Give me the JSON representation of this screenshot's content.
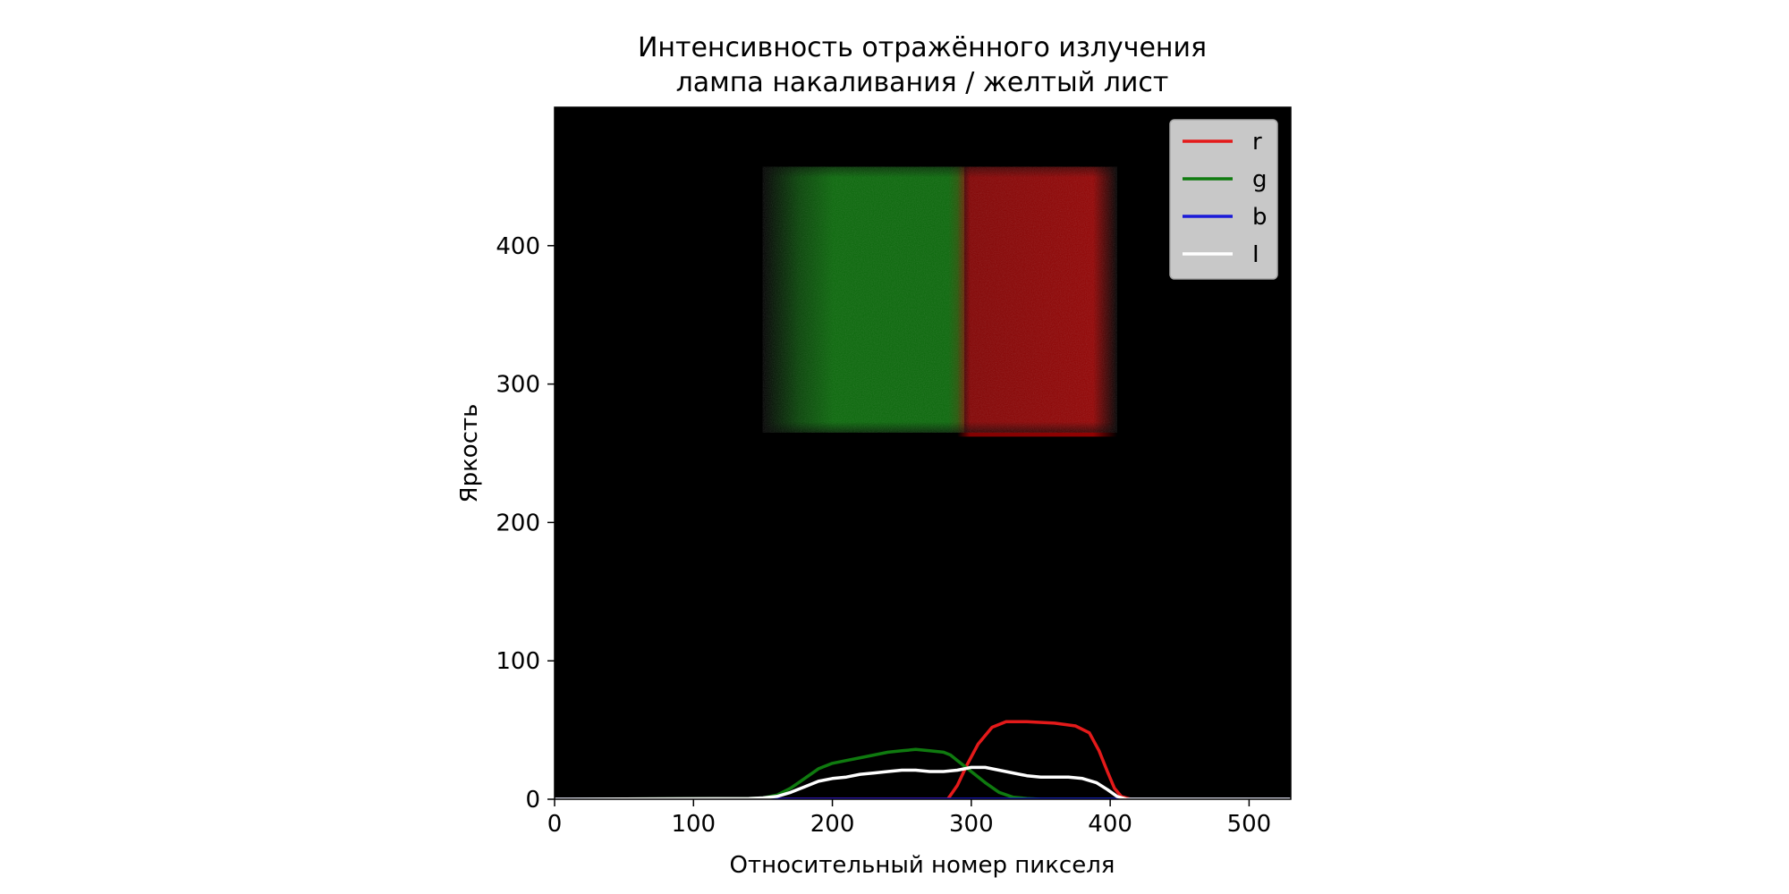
{
  "chart_data": {
    "type": "line",
    "title": "Интенсивность отражённого излучения",
    "subtitle": "лампа накаливания / желтый лист",
    "xlabel": "Относительный номер пикселя",
    "ylabel": "Яркость",
    "xlim": [
      0,
      530
    ],
    "ylim": [
      0,
      500
    ],
    "x_ticks": [
      0,
      100,
      200,
      300,
      400,
      500
    ],
    "y_ticks": [
      0,
      100,
      200,
      300,
      400
    ],
    "grid": false,
    "legend_position": "top-right",
    "background_image": {
      "description": "spectrum photo",
      "green_band": {
        "x": [
          150,
          295
        ],
        "y": [
          265,
          457
        ],
        "color": "#0a7a0a"
      },
      "red_band": {
        "x": [
          290,
          405
        ],
        "y": [
          262,
          457
        ],
        "color": "#9a0202"
      }
    },
    "series": [
      {
        "name": "r",
        "color": "#e41a1a",
        "points": [
          [
            0,
            0
          ],
          [
            270,
            0
          ],
          [
            283,
            0
          ],
          [
            290,
            10
          ],
          [
            297,
            25
          ],
          [
            305,
            40
          ],
          [
            315,
            52
          ],
          [
            325,
            56
          ],
          [
            340,
            56
          ],
          [
            360,
            55
          ],
          [
            375,
            53
          ],
          [
            385,
            48
          ],
          [
            392,
            35
          ],
          [
            398,
            20
          ],
          [
            403,
            8
          ],
          [
            408,
            2
          ],
          [
            415,
            0
          ],
          [
            530,
            0
          ]
        ]
      },
      {
        "name": "g",
        "color": "#0f7a0f",
        "points": [
          [
            0,
            0
          ],
          [
            140,
            0.5
          ],
          [
            150,
            1
          ],
          [
            160,
            3
          ],
          [
            170,
            8
          ],
          [
            180,
            15
          ],
          [
            190,
            22
          ],
          [
            200,
            26
          ],
          [
            210,
            28
          ],
          [
            220,
            30
          ],
          [
            230,
            32
          ],
          [
            240,
            34
          ],
          [
            250,
            35
          ],
          [
            260,
            36
          ],
          [
            270,
            35
          ],
          [
            280,
            34
          ],
          [
            285,
            32
          ],
          [
            290,
            28
          ],
          [
            300,
            20
          ],
          [
            310,
            12
          ],
          [
            320,
            5
          ],
          [
            330,
            1.5
          ],
          [
            340,
            0.5
          ],
          [
            350,
            0
          ],
          [
            530,
            0
          ]
        ]
      },
      {
        "name": "b",
        "color": "#1a1ad8",
        "points": [
          [
            0,
            0
          ],
          [
            530,
            0
          ]
        ]
      },
      {
        "name": "I",
        "color": "#ffffff",
        "points": [
          [
            0,
            0
          ],
          [
            140,
            0.5
          ],
          [
            150,
            1
          ],
          [
            160,
            2
          ],
          [
            170,
            5
          ],
          [
            180,
            9
          ],
          [
            190,
            13
          ],
          [
            200,
            15
          ],
          [
            210,
            16
          ],
          [
            220,
            18
          ],
          [
            230,
            19
          ],
          [
            240,
            20
          ],
          [
            250,
            21
          ],
          [
            260,
            21
          ],
          [
            270,
            20
          ],
          [
            280,
            20
          ],
          [
            290,
            21
          ],
          [
            300,
            23
          ],
          [
            310,
            23
          ],
          [
            320,
            21
          ],
          [
            330,
            19
          ],
          [
            340,
            17
          ],
          [
            350,
            16
          ],
          [
            360,
            16
          ],
          [
            370,
            16
          ],
          [
            380,
            15
          ],
          [
            390,
            12
          ],
          [
            398,
            7
          ],
          [
            405,
            2
          ],
          [
            412,
            0
          ],
          [
            530,
            0
          ]
        ]
      }
    ]
  }
}
